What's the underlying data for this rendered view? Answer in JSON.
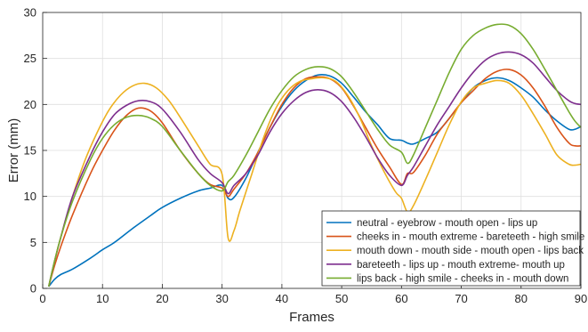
{
  "chart_data": {
    "type": "line",
    "title": "",
    "xlabel": "Frames",
    "ylabel": "Error (mm)",
    "xlim": [
      0,
      90
    ],
    "ylim": [
      0,
      30
    ],
    "xticks": [
      0,
      10,
      20,
      30,
      40,
      50,
      60,
      70,
      80,
      90
    ],
    "yticks": [
      0,
      5,
      10,
      15,
      20,
      25,
      30
    ],
    "grid": true,
    "legend_position": "bottom-right",
    "series": [
      {
        "name": "neutral - eyebrow - mouth open - lips up",
        "color": "#0072BD",
        "x": [
          1,
          2,
          3,
          5,
          8,
          10,
          12,
          15,
          18,
          20,
          23,
          26,
          28,
          30,
          31,
          32,
          34,
          36,
          38,
          40,
          42,
          44,
          46,
          48,
          50,
          52,
          54,
          56,
          58,
          60,
          61,
          62,
          64,
          66,
          68,
          70,
          72,
          74,
          76,
          78,
          80,
          82,
          84,
          86,
          88,
          89,
          90
        ],
        "y": [
          0.2,
          1.0,
          1.5,
          2.1,
          3.3,
          4.2,
          5.0,
          6.5,
          7.9,
          8.8,
          9.8,
          10.6,
          10.9,
          11.2,
          9.8,
          9.9,
          12.0,
          14.8,
          17.5,
          19.8,
          21.5,
          22.6,
          23.2,
          23.1,
          22.3,
          20.8,
          19.2,
          17.8,
          16.3,
          16.1,
          15.8,
          15.7,
          16.3,
          17.0,
          18.5,
          20.2,
          21.8,
          22.6,
          22.9,
          22.6,
          21.8,
          20.8,
          19.4,
          18.2,
          17.3,
          17.3,
          17.6
        ]
      },
      {
        "name": "cheeks in - mouth extreme - bareteeth - high smile",
        "color": "#D95319",
        "x": [
          1,
          2,
          3,
          5,
          8,
          10,
          12,
          14,
          16,
          18,
          20,
          23,
          26,
          28,
          30,
          31,
          32,
          34,
          36,
          38,
          40,
          42,
          44,
          46,
          48,
          50,
          52,
          54,
          56,
          58,
          60,
          61,
          62,
          64,
          66,
          68,
          70,
          72,
          74,
          76,
          78,
          80,
          82,
          84,
          86,
          88,
          89,
          90
        ],
        "y": [
          0.2,
          2.5,
          4.5,
          8.0,
          12.5,
          15.0,
          17.2,
          18.8,
          19.6,
          19.3,
          18.0,
          15.0,
          12.5,
          11.3,
          10.9,
          10.0,
          10.8,
          12.5,
          14.8,
          17.5,
          20.0,
          21.8,
          22.8,
          23.0,
          22.8,
          21.8,
          19.8,
          17.5,
          15.2,
          13.2,
          11.3,
          12.5,
          12.6,
          14.5,
          16.8,
          18.5,
          20.2,
          21.5,
          22.8,
          23.6,
          23.8,
          23.2,
          21.8,
          19.8,
          17.5,
          15.8,
          15.5,
          15.5
        ]
      },
      {
        "name": "mouth down - mouth side - mouth open - lips back",
        "color": "#EDB120",
        "x": [
          1,
          2,
          3,
          5,
          7,
          9,
          11,
          13,
          15,
          17,
          19,
          21,
          23,
          26,
          28,
          30,
          31,
          32,
          33,
          35,
          37,
          39,
          41,
          43,
          45,
          47,
          49,
          51,
          53,
          55,
          57,
          59,
          60,
          61,
          62,
          64,
          66,
          68,
          70,
          72,
          74,
          76,
          78,
          80,
          82,
          84,
          86,
          88,
          89,
          90
        ],
        "y": [
          0.2,
          3.0,
          5.5,
          10.0,
          13.8,
          16.8,
          19.3,
          21.0,
          22.0,
          22.3,
          21.8,
          20.5,
          18.6,
          15.5,
          13.5,
          12.4,
          5.5,
          6.3,
          8.5,
          12.5,
          16.5,
          19.6,
          21.5,
          22.5,
          22.8,
          22.9,
          22.5,
          21.0,
          18.6,
          15.5,
          12.8,
          10.5,
          9.8,
          8.3,
          9.0,
          11.8,
          14.8,
          17.8,
          20.3,
          21.8,
          22.3,
          22.6,
          22.3,
          21.0,
          19.0,
          16.8,
          14.5,
          13.5,
          13.4,
          13.5
        ]
      },
      {
        "name": "bareteeth - lips up - mouth extreme- mouth up",
        "color": "#7E2F8E",
        "x": [
          1,
          2,
          3,
          5,
          8,
          10,
          12,
          14,
          16,
          18,
          20,
          23,
          26,
          28,
          30,
          31,
          32,
          34,
          36,
          38,
          40,
          42,
          44,
          46,
          48,
          50,
          52,
          54,
          56,
          58,
          60,
          61,
          62,
          64,
          66,
          68,
          70,
          72,
          74,
          76,
          78,
          80,
          82,
          84,
          86,
          88,
          89,
          90
        ],
        "y": [
          0.2,
          3.0,
          5.5,
          10.0,
          14.5,
          17.0,
          18.9,
          19.9,
          20.4,
          20.3,
          19.5,
          17.0,
          14.0,
          12.5,
          11.5,
          10.3,
          11.2,
          12.5,
          14.5,
          17.0,
          19.0,
          20.4,
          21.3,
          21.6,
          21.3,
          20.3,
          18.6,
          16.5,
          14.2,
          12.3,
          11.2,
          12.3,
          13.2,
          15.5,
          17.8,
          19.8,
          21.8,
          23.5,
          24.8,
          25.5,
          25.7,
          25.4,
          24.5,
          23.0,
          21.5,
          20.4,
          20.1,
          20.0
        ]
      },
      {
        "name": "lips back - high smile - cheeks in - mouth down",
        "color": "#77AC30",
        "x": [
          1,
          2,
          3,
          5,
          8,
          10,
          12,
          14,
          16,
          18,
          20,
          23,
          26,
          28,
          30,
          31,
          32,
          34,
          36,
          38,
          40,
          42,
          44,
          46,
          48,
          50,
          52,
          54,
          56,
          58,
          60,
          61,
          62,
          64,
          66,
          68,
          70,
          72,
          74,
          76,
          78,
          80,
          82,
          84,
          86,
          88,
          89,
          90
        ],
        "y": [
          0.2,
          3.0,
          5.5,
          9.5,
          14.0,
          16.3,
          17.8,
          18.6,
          18.8,
          18.5,
          17.6,
          15.0,
          12.5,
          11.2,
          10.6,
          11.6,
          12.3,
          14.5,
          17.0,
          19.5,
          21.5,
          23.0,
          23.8,
          24.1,
          23.9,
          23.0,
          21.3,
          19.3,
          17.3,
          15.6,
          14.8,
          13.6,
          14.5,
          17.5,
          20.5,
          23.5,
          26.0,
          27.5,
          28.3,
          28.7,
          28.6,
          27.7,
          26.0,
          23.8,
          21.5,
          19.2,
          18.2,
          17.5
        ]
      }
    ]
  }
}
